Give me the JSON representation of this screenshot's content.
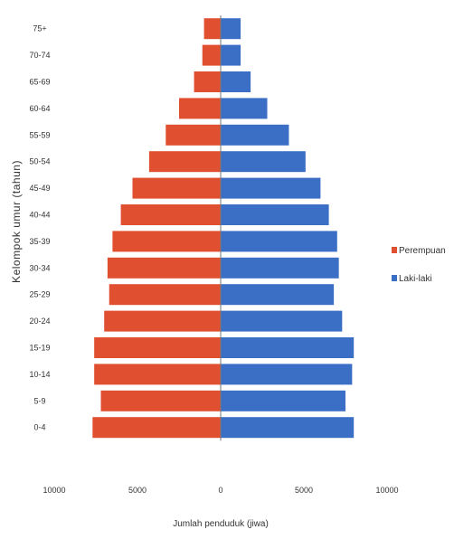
{
  "chart_data": {
    "type": "bar",
    "orientation": "horizontal",
    "layout": "population-pyramid",
    "categories": [
      "0-4",
      "5-9",
      "10-14",
      "15-19",
      "20-24",
      "25-29",
      "30-34",
      "35-39",
      "40-44",
      "45-49",
      "50-54",
      "55-59",
      "60-64",
      "65-69",
      "70-74",
      "75+"
    ],
    "series": [
      {
        "name": "Perempuan",
        "side": "left",
        "color": "#e05030",
        "values": [
          7700,
          7200,
          7600,
          7600,
          7000,
          6700,
          6800,
          6500,
          6000,
          5300,
          4300,
          3300,
          2500,
          1600,
          1100,
          1000
        ]
      },
      {
        "name": "Laki-laki",
        "side": "right",
        "color": "#3b6fc6",
        "values": [
          8000,
          7500,
          7900,
          8000,
          7300,
          6800,
          7100,
          7000,
          6500,
          6000,
          5100,
          4100,
          2800,
          1800,
          1200,
          1200
        ]
      }
    ],
    "x_ticks": [
      "10000",
      "5000",
      "0",
      "5000",
      "10000"
    ],
    "xlim": [
      -10000,
      10000
    ],
    "xlabel": "Jumlah penduduk (jiwa)",
    "ylabel": "Kelompok umur (tahun)",
    "legend": "right",
    "grid": false
  }
}
